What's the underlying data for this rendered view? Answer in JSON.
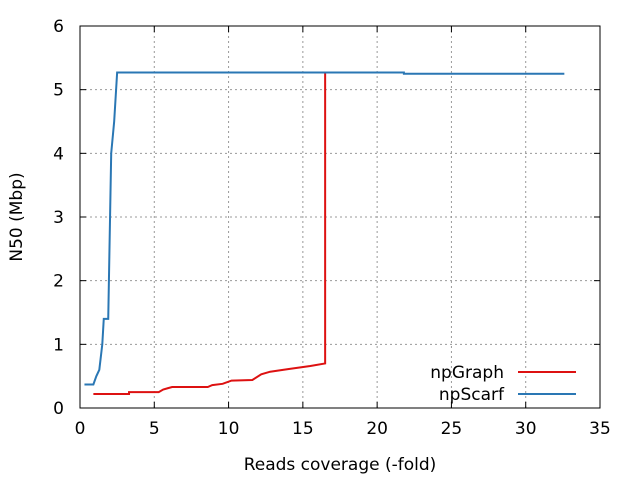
{
  "chart_data": {
    "type": "line",
    "title": "",
    "xlabel": "Reads coverage (-fold)",
    "ylabel": "N50 (Mbp)",
    "xlim": [
      0,
      35
    ],
    "ylim": [
      0,
      6
    ],
    "xticks": [
      0,
      5,
      10,
      15,
      20,
      25,
      30,
      35
    ],
    "yticks": [
      0,
      1,
      2,
      3,
      4,
      5,
      6
    ],
    "grid": "dotted",
    "legend_position": "bottom-right",
    "series": [
      {
        "name": "npGraph",
        "color": "#dd1111",
        "points": [
          [
            0.9,
            0.22
          ],
          [
            3.3,
            0.22
          ],
          [
            3.3,
            0.25
          ],
          [
            5.3,
            0.25
          ],
          [
            5.6,
            0.29
          ],
          [
            5.9,
            0.31
          ],
          [
            6.2,
            0.33
          ],
          [
            8.6,
            0.33
          ],
          [
            8.9,
            0.36
          ],
          [
            9.6,
            0.38
          ],
          [
            10.2,
            0.43
          ],
          [
            11.6,
            0.44
          ],
          [
            12.2,
            0.53
          ],
          [
            12.8,
            0.57
          ],
          [
            14.0,
            0.61
          ],
          [
            15.5,
            0.66
          ],
          [
            16.5,
            0.7
          ],
          [
            16.5,
            5.27
          ]
        ]
      },
      {
        "name": "npScarf",
        "color": "#2a77b4",
        "points": [
          [
            0.3,
            0.37
          ],
          [
            0.9,
            0.37
          ],
          [
            1.1,
            0.5
          ],
          [
            1.3,
            0.6
          ],
          [
            1.5,
            1.0
          ],
          [
            1.6,
            1.4
          ],
          [
            1.9,
            1.4
          ],
          [
            2.0,
            2.7
          ],
          [
            2.1,
            4.0
          ],
          [
            2.3,
            4.5
          ],
          [
            2.5,
            5.27
          ],
          [
            21.8,
            5.27
          ],
          [
            21.8,
            5.25
          ],
          [
            32.6,
            5.25
          ]
        ]
      }
    ]
  }
}
